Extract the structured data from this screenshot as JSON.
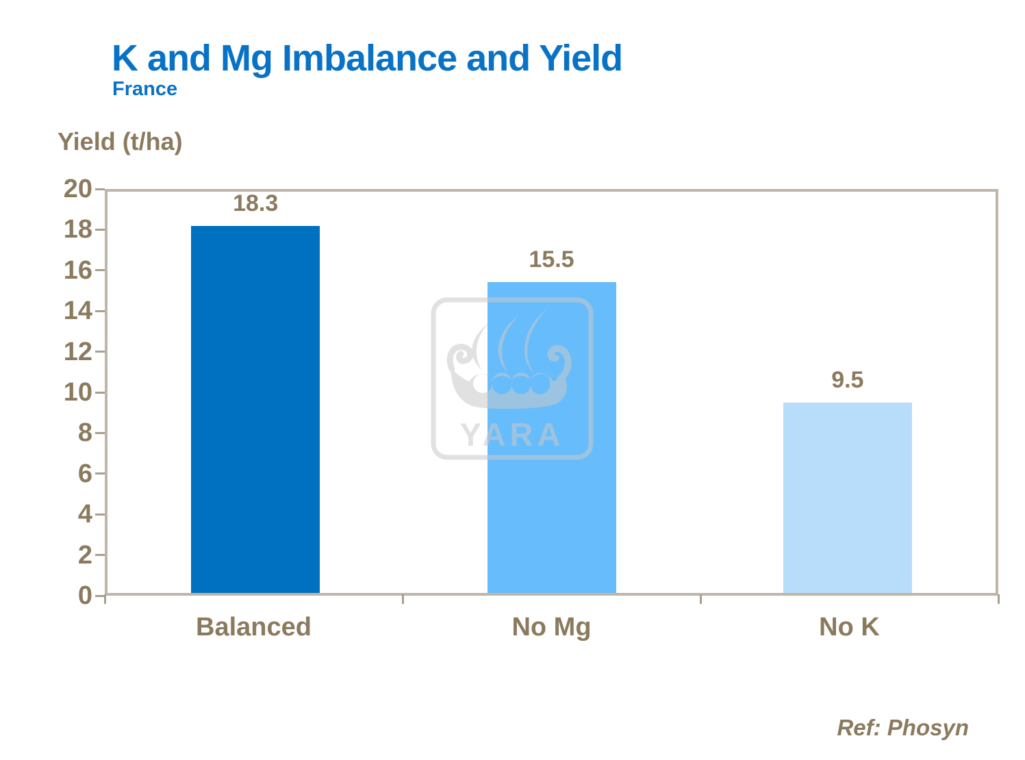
{
  "header": {
    "title": "K and Mg Imbalance and Yield",
    "subtitle": "France"
  },
  "chart_data": {
    "type": "bar",
    "title": "K and Mg Imbalance and Yield",
    "subtitle": "France",
    "categories": [
      "Balanced",
      "No Mg",
      "No K"
    ],
    "values": [
      18.3,
      15.5,
      9.5
    ],
    "data_labels": [
      "18.3",
      "15.5",
      "9.5"
    ],
    "xlabel": "",
    "ylabel": "Yield (t/ha)",
    "ylim": [
      0,
      20
    ],
    "ytick_step": 2,
    "grid": false,
    "legend": false,
    "bar_colors": [
      "#0070C0",
      "#67BCFC",
      "#B8DDFB"
    ]
  },
  "watermark": {
    "text": "YARA",
    "name": "yara-viking-ship-logo"
  },
  "footer": {
    "reference": "Ref: Phosyn"
  },
  "colors": {
    "accent_blue": "#0872C6",
    "label_brown": "#8B7A5E",
    "axis_tan": "#C0B5AA"
  }
}
